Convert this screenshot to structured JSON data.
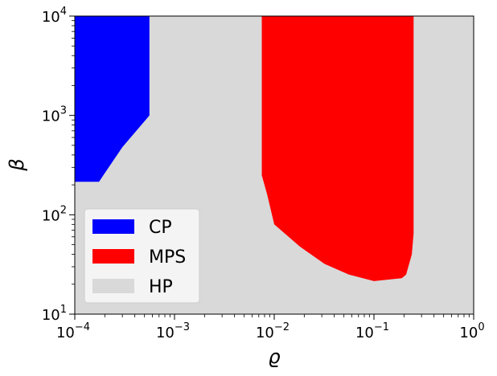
{
  "chart_data": {
    "type": "area",
    "title": "",
    "xlabel": "ϱ",
    "ylabel": "β",
    "xscale": "log",
    "yscale": "log",
    "xlim": [
      0.0001,
      1
    ],
    "ylim": [
      10,
      10000
    ],
    "x_ticks": [
      {
        "value": 0.0001,
        "base": "10",
        "exp": "−4"
      },
      {
        "value": 0.001,
        "base": "10",
        "exp": "−3"
      },
      {
        "value": 0.01,
        "base": "10",
        "exp": "−2"
      },
      {
        "value": 0.1,
        "base": "10",
        "exp": "−1"
      },
      {
        "value": 1,
        "base": "10",
        "exp": "0"
      }
    ],
    "y_ticks": [
      {
        "value": 10,
        "base": "10",
        "exp": "1"
      },
      {
        "value": 100,
        "base": "10",
        "exp": "2"
      },
      {
        "value": 1000,
        "base": "10",
        "exp": "3"
      },
      {
        "value": 10000,
        "base": "10",
        "exp": "4"
      }
    ],
    "grid": false,
    "legend": {
      "placement": "lower-left"
    },
    "regions": [
      {
        "name": "CP",
        "color": "#0000ff",
        "polygon": [
          [
            0.0001,
            10000
          ],
          [
            0.00056,
            10000
          ],
          [
            0.00056,
            1000
          ],
          [
            0.0003,
            480
          ],
          [
            0.000175,
            215
          ],
          [
            0.0001,
            215
          ]
        ]
      },
      {
        "name": "MPS",
        "color": "#ff0000",
        "polygon": [
          [
            0.0075,
            10000
          ],
          [
            0.25,
            10000
          ],
          [
            0.25,
            65
          ],
          [
            0.24,
            40
          ],
          [
            0.21,
            25
          ],
          [
            0.19,
            23
          ],
          [
            0.1,
            21.5
          ],
          [
            0.056,
            25
          ],
          [
            0.032,
            32
          ],
          [
            0.018,
            48
          ],
          [
            0.01,
            80
          ],
          [
            0.0085,
            160
          ],
          [
            0.0075,
            250
          ]
        ]
      },
      {
        "name": "HP",
        "color": "#d9d9d9",
        "polygon": "background"
      }
    ]
  }
}
